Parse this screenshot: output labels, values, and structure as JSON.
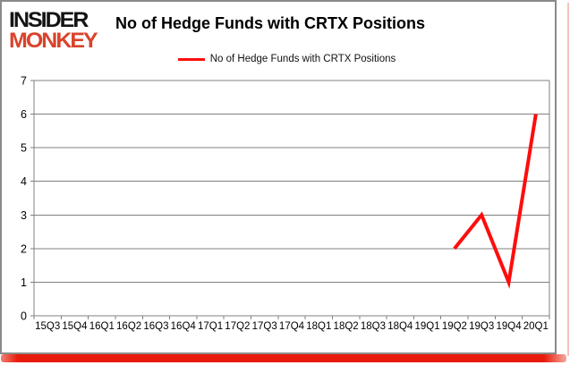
{
  "logo": {
    "top": "INSIDER",
    "bottom": "MONKEY",
    "red": "#d9432b"
  },
  "frame": {
    "border_color": "#8a8a8a",
    "bottom_bar_color": "#e81a0a"
  },
  "chart_data": {
    "type": "line",
    "title": "No of Hedge Funds with CRTX Positions",
    "categories": [
      "15Q3",
      "15Q4",
      "16Q1",
      "16Q2",
      "16Q3",
      "16Q4",
      "17Q1",
      "17Q2",
      "17Q3",
      "17Q4",
      "18Q1",
      "18Q2",
      "18Q3",
      "18Q4",
      "19Q1",
      "19Q2",
      "19Q3",
      "19Q4",
      "20Q1"
    ],
    "series": [
      {
        "name": "No of Hedge Funds with CRTX Positions",
        "color": "#fe0d0d",
        "values": [
          null,
          null,
          null,
          null,
          null,
          null,
          null,
          null,
          null,
          null,
          null,
          null,
          null,
          null,
          null,
          2,
          3,
          1,
          6
        ]
      }
    ],
    "xlabel": "",
    "ylabel": "",
    "ylim": [
      0,
      7
    ],
    "yticks": [
      0,
      1,
      2,
      3,
      4,
      5,
      6,
      7
    ],
    "grid": true,
    "grid_color": "#808080",
    "legend_position": "top"
  }
}
